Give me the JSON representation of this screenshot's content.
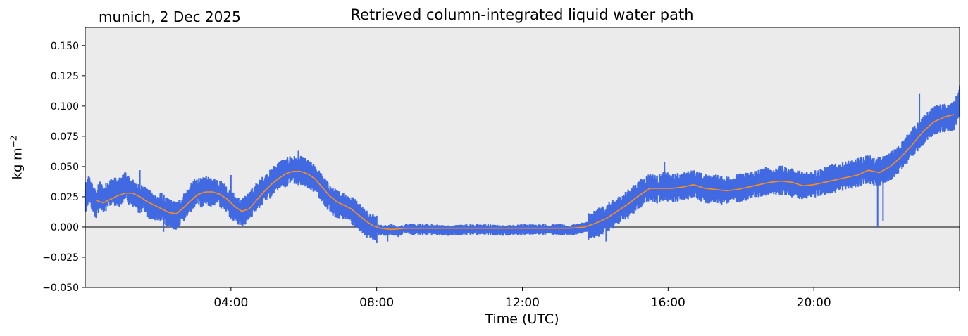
{
  "header": {
    "location_date": "munich, 2 Dec 2025"
  },
  "chart_data": {
    "type": "line",
    "title": "Retrieved column-integrated liquid water path",
    "xlabel": "Time (UTC)",
    "ylabel": "kg m",
    "ylabel_exponent": "−2",
    "xlim_hours": [
      0,
      24
    ],
    "ylim": [
      -0.05,
      0.165
    ],
    "x_ticks": [
      {
        "hour": 4,
        "label": "04:00"
      },
      {
        "hour": 8,
        "label": "08:00"
      },
      {
        "hour": 12,
        "label": "12:00"
      },
      {
        "hour": 16,
        "label": "16:00"
      },
      {
        "hour": 20,
        "label": "20:00"
      }
    ],
    "y_ticks": [
      {
        "value": 0.15,
        "label": "0.150"
      },
      {
        "value": 0.125,
        "label": "0.125"
      },
      {
        "value": 0.1,
        "label": "0.100"
      },
      {
        "value": 0.075,
        "label": "0.075"
      },
      {
        "value": 0.05,
        "label": "0.050"
      },
      {
        "value": 0.025,
        "label": "0.025"
      },
      {
        "value": 0.0,
        "label": "0.000"
      },
      {
        "value": -0.025,
        "label": "−0.025"
      },
      {
        "value": -0.05,
        "label": "−0.050"
      }
    ],
    "zero_line": true,
    "background": "#ebebeb",
    "series": [
      {
        "role": "raw retrieval (scatter)",
        "color": "#4169e1",
        "points": [
          [
            0.0,
            0.022
          ],
          [
            0.1,
            0.032
          ],
          [
            0.2,
            0.024
          ],
          [
            0.3,
            0.018
          ],
          [
            0.4,
            0.027
          ],
          [
            0.5,
            0.022
          ],
          [
            0.6,
            0.026
          ],
          [
            0.75,
            0.03
          ],
          [
            0.9,
            0.028
          ],
          [
            1.0,
            0.03
          ],
          [
            1.1,
            0.035
          ],
          [
            1.2,
            0.03
          ],
          [
            1.3,
            0.028
          ],
          [
            1.4,
            0.026
          ],
          [
            1.5,
            0.022
          ],
          [
            1.6,
            0.025
          ],
          [
            1.7,
            0.02
          ],
          [
            1.8,
            0.018
          ],
          [
            1.9,
            0.016
          ],
          [
            2.0,
            0.015
          ],
          [
            2.1,
            0.017
          ],
          [
            2.2,
            0.013
          ],
          [
            2.3,
            0.012
          ],
          [
            2.4,
            0.01
          ],
          [
            2.5,
            0.009
          ],
          [
            2.6,
            0.012
          ],
          [
            2.7,
            0.016
          ],
          [
            2.8,
            0.02
          ],
          [
            2.9,
            0.024
          ],
          [
            3.0,
            0.028
          ],
          [
            3.1,
            0.03
          ],
          [
            3.2,
            0.028
          ],
          [
            3.3,
            0.031
          ],
          [
            3.4,
            0.029
          ],
          [
            3.5,
            0.028
          ],
          [
            3.6,
            0.03
          ],
          [
            3.7,
            0.027
          ],
          [
            3.8,
            0.026
          ],
          [
            3.9,
            0.022
          ],
          [
            4.0,
            0.018
          ],
          [
            4.1,
            0.016
          ],
          [
            4.2,
            0.013
          ],
          [
            4.3,
            0.012
          ],
          [
            4.4,
            0.014
          ],
          [
            4.5,
            0.018
          ],
          [
            4.6,
            0.021
          ],
          [
            4.7,
            0.025
          ],
          [
            4.8,
            0.028
          ],
          [
            4.9,
            0.031
          ],
          [
            5.0,
            0.034
          ],
          [
            5.1,
            0.036
          ],
          [
            5.2,
            0.04
          ],
          [
            5.3,
            0.042
          ],
          [
            5.4,
            0.045
          ],
          [
            5.5,
            0.044
          ],
          [
            5.6,
            0.047
          ],
          [
            5.7,
            0.048
          ],
          [
            5.8,
            0.046
          ],
          [
            5.9,
            0.047
          ],
          [
            6.0,
            0.046
          ],
          [
            6.1,
            0.044
          ],
          [
            6.2,
            0.042
          ],
          [
            6.3,
            0.04
          ],
          [
            6.4,
            0.036
          ],
          [
            6.5,
            0.032
          ],
          [
            6.6,
            0.028
          ],
          [
            6.7,
            0.024
          ],
          [
            6.8,
            0.021
          ],
          [
            6.9,
            0.019
          ],
          [
            7.0,
            0.018
          ],
          [
            7.1,
            0.017
          ],
          [
            7.2,
            0.016
          ],
          [
            7.3,
            0.014
          ],
          [
            7.4,
            0.012
          ],
          [
            7.5,
            0.009
          ],
          [
            7.6,
            0.006
          ],
          [
            7.7,
            0.003
          ],
          [
            7.8,
            0.001
          ],
          [
            7.9,
            0.0
          ],
          [
            8.0,
            -0.002
          ],
          [
            8.2,
            -0.003
          ],
          [
            8.4,
            -0.002
          ],
          [
            8.6,
            -0.004
          ],
          [
            8.8,
            -0.001
          ],
          [
            9.0,
            -0.002
          ],
          [
            9.5,
            -0.002
          ],
          [
            10.0,
            -0.003
          ],
          [
            10.5,
            -0.002
          ],
          [
            11.0,
            -0.002
          ],
          [
            11.5,
            -0.003
          ],
          [
            12.0,
            -0.002
          ],
          [
            12.5,
            -0.002
          ],
          [
            13.0,
            -0.002
          ],
          [
            13.3,
            -0.003
          ],
          [
            13.6,
            -0.001
          ],
          [
            13.9,
            0.001
          ],
          [
            14.1,
            0.004
          ],
          [
            14.3,
            0.007
          ],
          [
            14.5,
            0.011
          ],
          [
            14.7,
            0.015
          ],
          [
            14.9,
            0.019
          ],
          [
            15.1,
            0.024
          ],
          [
            15.3,
            0.029
          ],
          [
            15.5,
            0.033
          ],
          [
            15.7,
            0.031
          ],
          [
            15.9,
            0.034
          ],
          [
            16.1,
            0.032
          ],
          [
            16.3,
            0.033
          ],
          [
            16.5,
            0.034
          ],
          [
            16.7,
            0.036
          ],
          [
            16.9,
            0.033
          ],
          [
            17.1,
            0.031
          ],
          [
            17.3,
            0.032
          ],
          [
            17.5,
            0.03
          ],
          [
            17.7,
            0.031
          ],
          [
            17.9,
            0.032
          ],
          [
            18.1,
            0.033
          ],
          [
            18.3,
            0.035
          ],
          [
            18.5,
            0.036
          ],
          [
            18.7,
            0.038
          ],
          [
            18.9,
            0.037
          ],
          [
            19.1,
            0.039
          ],
          [
            19.3,
            0.037
          ],
          [
            19.5,
            0.036
          ],
          [
            19.7,
            0.034
          ],
          [
            19.9,
            0.035
          ],
          [
            20.1,
            0.036
          ],
          [
            20.3,
            0.038
          ],
          [
            20.5,
            0.04
          ],
          [
            20.7,
            0.041
          ],
          [
            20.9,
            0.043
          ],
          [
            21.1,
            0.044
          ],
          [
            21.3,
            0.046
          ],
          [
            21.5,
            0.048
          ],
          [
            21.7,
            0.045
          ],
          [
            21.9,
            0.047
          ],
          [
            22.1,
            0.05
          ],
          [
            22.3,
            0.055
          ],
          [
            22.5,
            0.062
          ],
          [
            22.7,
            0.07
          ],
          [
            22.9,
            0.076
          ],
          [
            23.1,
            0.083
          ],
          [
            23.3,
            0.088
          ],
          [
            23.5,
            0.09
          ],
          [
            23.7,
            0.09
          ],
          [
            23.85,
            0.092
          ],
          [
            24.0,
            0.103
          ]
        ]
      },
      {
        "role": "smoothed",
        "color": "#ff8c1a",
        "points": [
          [
            0.3,
            0.022
          ],
          [
            0.5,
            0.02
          ],
          [
            0.7,
            0.023
          ],
          [
            0.9,
            0.026
          ],
          [
            1.1,
            0.028
          ],
          [
            1.3,
            0.028
          ],
          [
            1.5,
            0.025
          ],
          [
            1.7,
            0.021
          ],
          [
            1.9,
            0.018
          ],
          [
            2.1,
            0.015
          ],
          [
            2.3,
            0.012
          ],
          [
            2.5,
            0.011
          ],
          [
            2.7,
            0.016
          ],
          [
            2.9,
            0.022
          ],
          [
            3.1,
            0.027
          ],
          [
            3.3,
            0.029
          ],
          [
            3.5,
            0.029
          ],
          [
            3.7,
            0.027
          ],
          [
            3.9,
            0.023
          ],
          [
            4.1,
            0.017
          ],
          [
            4.3,
            0.013
          ],
          [
            4.5,
            0.015
          ],
          [
            4.7,
            0.022
          ],
          [
            4.9,
            0.029
          ],
          [
            5.1,
            0.035
          ],
          [
            5.3,
            0.04
          ],
          [
            5.5,
            0.044
          ],
          [
            5.7,
            0.046
          ],
          [
            5.9,
            0.046
          ],
          [
            6.1,
            0.044
          ],
          [
            6.3,
            0.04
          ],
          [
            6.5,
            0.033
          ],
          [
            6.7,
            0.026
          ],
          [
            6.9,
            0.021
          ],
          [
            7.1,
            0.018
          ],
          [
            7.3,
            0.015
          ],
          [
            7.5,
            0.01
          ],
          [
            7.7,
            0.005
          ],
          [
            7.9,
            0.001
          ],
          [
            8.1,
            -0.001
          ],
          [
            8.4,
            -0.002
          ],
          [
            8.8,
            -0.001
          ],
          [
            9.5,
            -0.001
          ],
          [
            10.5,
            -0.001
          ],
          [
            11.5,
            -0.001
          ],
          [
            12.5,
            -0.001
          ],
          [
            13.3,
            -0.001
          ],
          [
            13.7,
            0.0
          ],
          [
            14.0,
            0.003
          ],
          [
            14.3,
            0.007
          ],
          [
            14.6,
            0.013
          ],
          [
            14.9,
            0.019
          ],
          [
            15.2,
            0.026
          ],
          [
            15.5,
            0.032
          ],
          [
            15.8,
            0.032
          ],
          [
            16.1,
            0.032
          ],
          [
            16.4,
            0.033
          ],
          [
            16.7,
            0.035
          ],
          [
            17.0,
            0.032
          ],
          [
            17.3,
            0.031
          ],
          [
            17.6,
            0.03
          ],
          [
            17.9,
            0.031
          ],
          [
            18.2,
            0.033
          ],
          [
            18.5,
            0.035
          ],
          [
            18.8,
            0.037
          ],
          [
            19.1,
            0.038
          ],
          [
            19.4,
            0.037
          ],
          [
            19.7,
            0.034
          ],
          [
            20.0,
            0.035
          ],
          [
            20.3,
            0.037
          ],
          [
            20.6,
            0.039
          ],
          [
            20.9,
            0.041
          ],
          [
            21.2,
            0.043
          ],
          [
            21.5,
            0.047
          ],
          [
            21.8,
            0.045
          ],
          [
            22.1,
            0.05
          ],
          [
            22.4,
            0.058
          ],
          [
            22.7,
            0.068
          ],
          [
            23.0,
            0.079
          ],
          [
            23.3,
            0.087
          ],
          [
            23.6,
            0.091
          ],
          [
            23.85,
            0.093
          ]
        ]
      }
    ]
  }
}
